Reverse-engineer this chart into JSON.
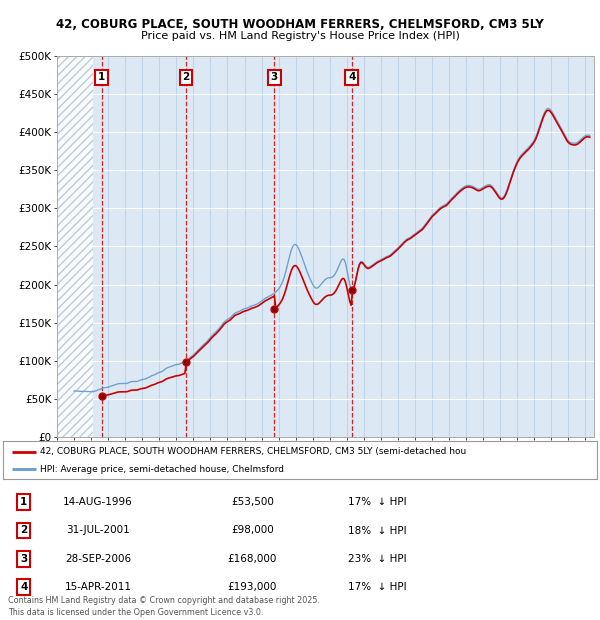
{
  "title": "42, COBURG PLACE, SOUTH WOODHAM FERRERS, CHELMSFORD, CM3 5LY",
  "subtitle": "Price paid vs. HM Land Registry's House Price Index (HPI)",
  "ylim": [
    0,
    500000
  ],
  "yticks": [
    0,
    50000,
    100000,
    150000,
    200000,
    250000,
    300000,
    350000,
    400000,
    450000,
    500000
  ],
  "ytick_labels": [
    "£0",
    "£50K",
    "£100K",
    "£150K",
    "£200K",
    "£250K",
    "£300K",
    "£350K",
    "£400K",
    "£450K",
    "£500K"
  ],
  "xlim_start": 1994.0,
  "xlim_end": 2025.5,
  "background_color": "#ffffff",
  "plot_bg_color": "#dce9f5",
  "grid_color": "#c8d8e8",
  "transactions": [
    {
      "num": 1,
      "date": "14-AUG-1996",
      "price": 53500,
      "year": 1996.62,
      "pct": "17%",
      "direction": "↓"
    },
    {
      "num": 2,
      "date": "31-JUL-2001",
      "price": 98000,
      "year": 2001.58,
      "pct": "18%",
      "direction": "↓"
    },
    {
      "num": 3,
      "date": "28-SEP-2006",
      "price": 168000,
      "year": 2006.75,
      "pct": "23%",
      "direction": "↓"
    },
    {
      "num": 4,
      "date": "15-APR-2011",
      "price": 193000,
      "year": 2011.29,
      "pct": "17%",
      "direction": "↓"
    }
  ],
  "legend_line1": "42, COBURG PLACE, SOUTH WOODHAM FERRERS, CHELMSFORD, CM3 5LY (semi-detached hou",
  "legend_line2": "HPI: Average price, semi-detached house, Chelmsford",
  "footer": "Contains HM Land Registry data © Crown copyright and database right 2025.\nThis data is licensed under the Open Government Licence v3.0.",
  "red_line_color": "#cc0000",
  "blue_line_color": "#6699cc"
}
